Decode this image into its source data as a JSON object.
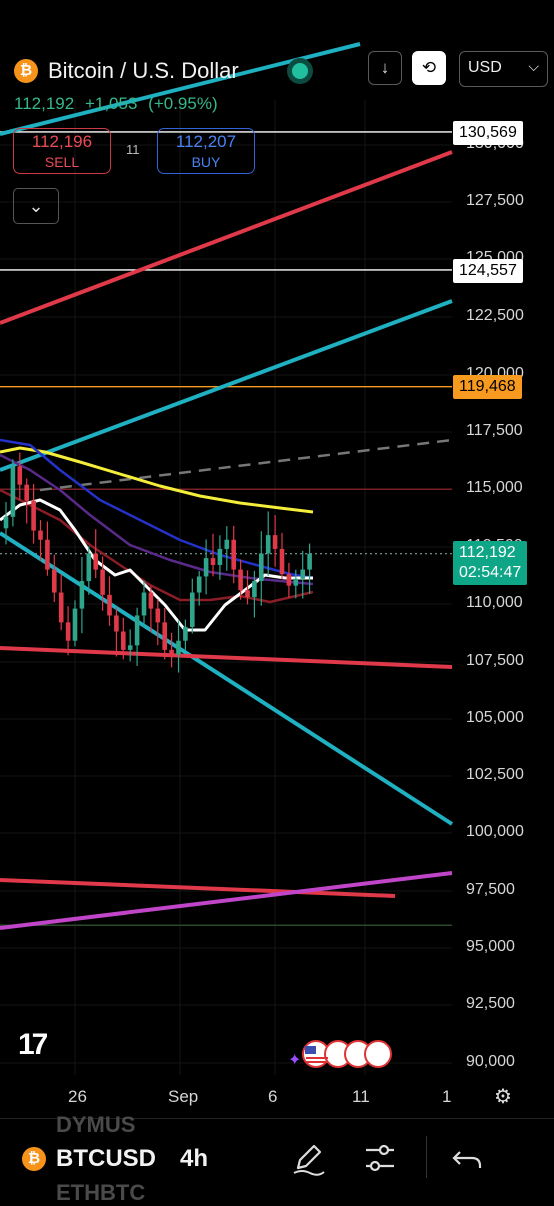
{
  "header": {
    "title": "Bitcoin / U.S. Dollar",
    "logo_glyph": "₿",
    "price": "112,192",
    "change": "+1,053",
    "change_pct": "(+0.95%)",
    "currency": "USD"
  },
  "trade": {
    "sell_price": "112,196",
    "sell_label": "SELL",
    "spread": "11",
    "buy_price": "112,207",
    "buy_label": "BUY"
  },
  "price_scale": {
    "ticks": [
      "130,000",
      "127,500",
      "125,000",
      "122,500",
      "120,000",
      "117,500",
      "115,000",
      "112,500",
      "110,000",
      "107,500",
      "105,000",
      "102,500",
      "100,000",
      "97,500",
      "95,000",
      "92,500",
      "90,000"
    ],
    "labels": {
      "alert_high": "130,569",
      "alert_mid": "124,557",
      "alert_orange": "119,468",
      "last_price": "112,192",
      "countdown": "02:54:47"
    }
  },
  "time_scale": {
    "ticks": [
      "26",
      "Sep",
      "6",
      "11",
      "1"
    ]
  },
  "bottom": {
    "ghost_top": "DYMUS",
    "ghost_bottom": "ETHBTC",
    "symbol": "BTCUSD",
    "timeframe": "4h"
  },
  "chart_data": {
    "type": "candlestick",
    "timeframe": "4h",
    "ylim": [
      90000,
      132500
    ],
    "last_price": 112192,
    "horizontal_lines": [
      130569,
      124557,
      119468,
      115000,
      96000
    ],
    "colors": {
      "up": "#2fa58c",
      "down": "#e0394a",
      "teal": "#1fb0c1",
      "red": "#e0394a",
      "yellow": "#f4ee3a",
      "blue": "#2432c8",
      "purple": "#5a2a8a",
      "magenta": "#c045c8",
      "orange": "#f79a1f"
    }
  }
}
